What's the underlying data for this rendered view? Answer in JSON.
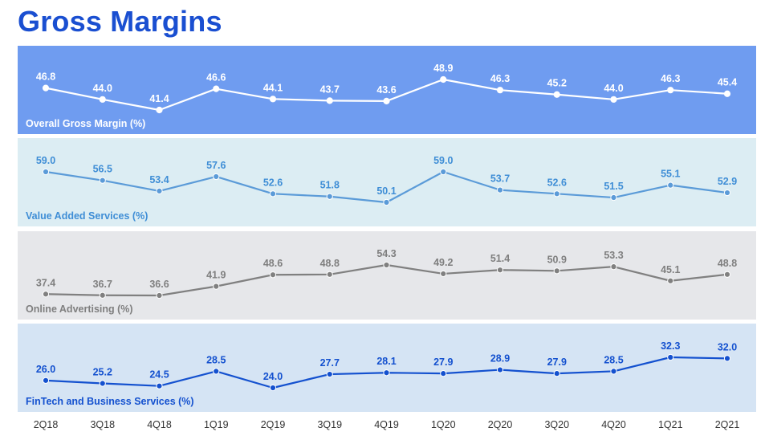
{
  "page": {
    "title": "Gross Margins"
  },
  "chart_data": {
    "type": "line",
    "categories": [
      "2Q18",
      "3Q18",
      "4Q18",
      "1Q19",
      "2Q19",
      "3Q19",
      "4Q19",
      "1Q20",
      "2Q20",
      "3Q20",
      "4Q20",
      "1Q21",
      "2Q21"
    ],
    "series": [
      {
        "name": "Overall Gross Margin (%)",
        "values": [
          46.8,
          44.0,
          41.4,
          46.6,
          44.1,
          43.7,
          43.6,
          48.9,
          46.3,
          45.2,
          44.0,
          46.3,
          45.4
        ],
        "band_color": "#6f9cf0",
        "line_color": "#ffffff",
        "text_color": "#ffffff",
        "marker_fill": "#ffffff",
        "marker_stroke": "#ffffff"
      },
      {
        "name": "Value Added Services (%)",
        "values": [
          59.0,
          56.5,
          53.4,
          57.6,
          52.6,
          51.8,
          50.1,
          59.0,
          53.7,
          52.6,
          51.5,
          55.1,
          52.9
        ],
        "band_color": "#dcedf3",
        "line_color": "#5b9bd8",
        "text_color": "#3f8ed6",
        "marker_fill": "#5b9bd8",
        "marker_stroke": "#ffffff"
      },
      {
        "name": "Online Advertising (%)",
        "values": [
          37.4,
          36.7,
          36.6,
          41.9,
          48.6,
          48.8,
          54.3,
          49.2,
          51.4,
          50.9,
          53.3,
          45.1,
          48.8
        ],
        "band_color": "#e6e7ea",
        "line_color": "#808080",
        "text_color": "#7f7f7f",
        "marker_fill": "#808080",
        "marker_stroke": "#ffffff"
      },
      {
        "name": "FinTech and Business Services (%)",
        "values": [
          26.0,
          25.2,
          24.5,
          28.5,
          24.0,
          27.7,
          28.1,
          27.9,
          28.9,
          27.9,
          28.5,
          32.3,
          32.0
        ],
        "band_color": "#d5e4f4",
        "line_color": "#1451cf",
        "text_color": "#1451cf",
        "marker_fill": "#1451cf",
        "marker_stroke": "#ffffff"
      }
    ],
    "legend": "panel labels bottom-left of each band",
    "grid": false
  }
}
